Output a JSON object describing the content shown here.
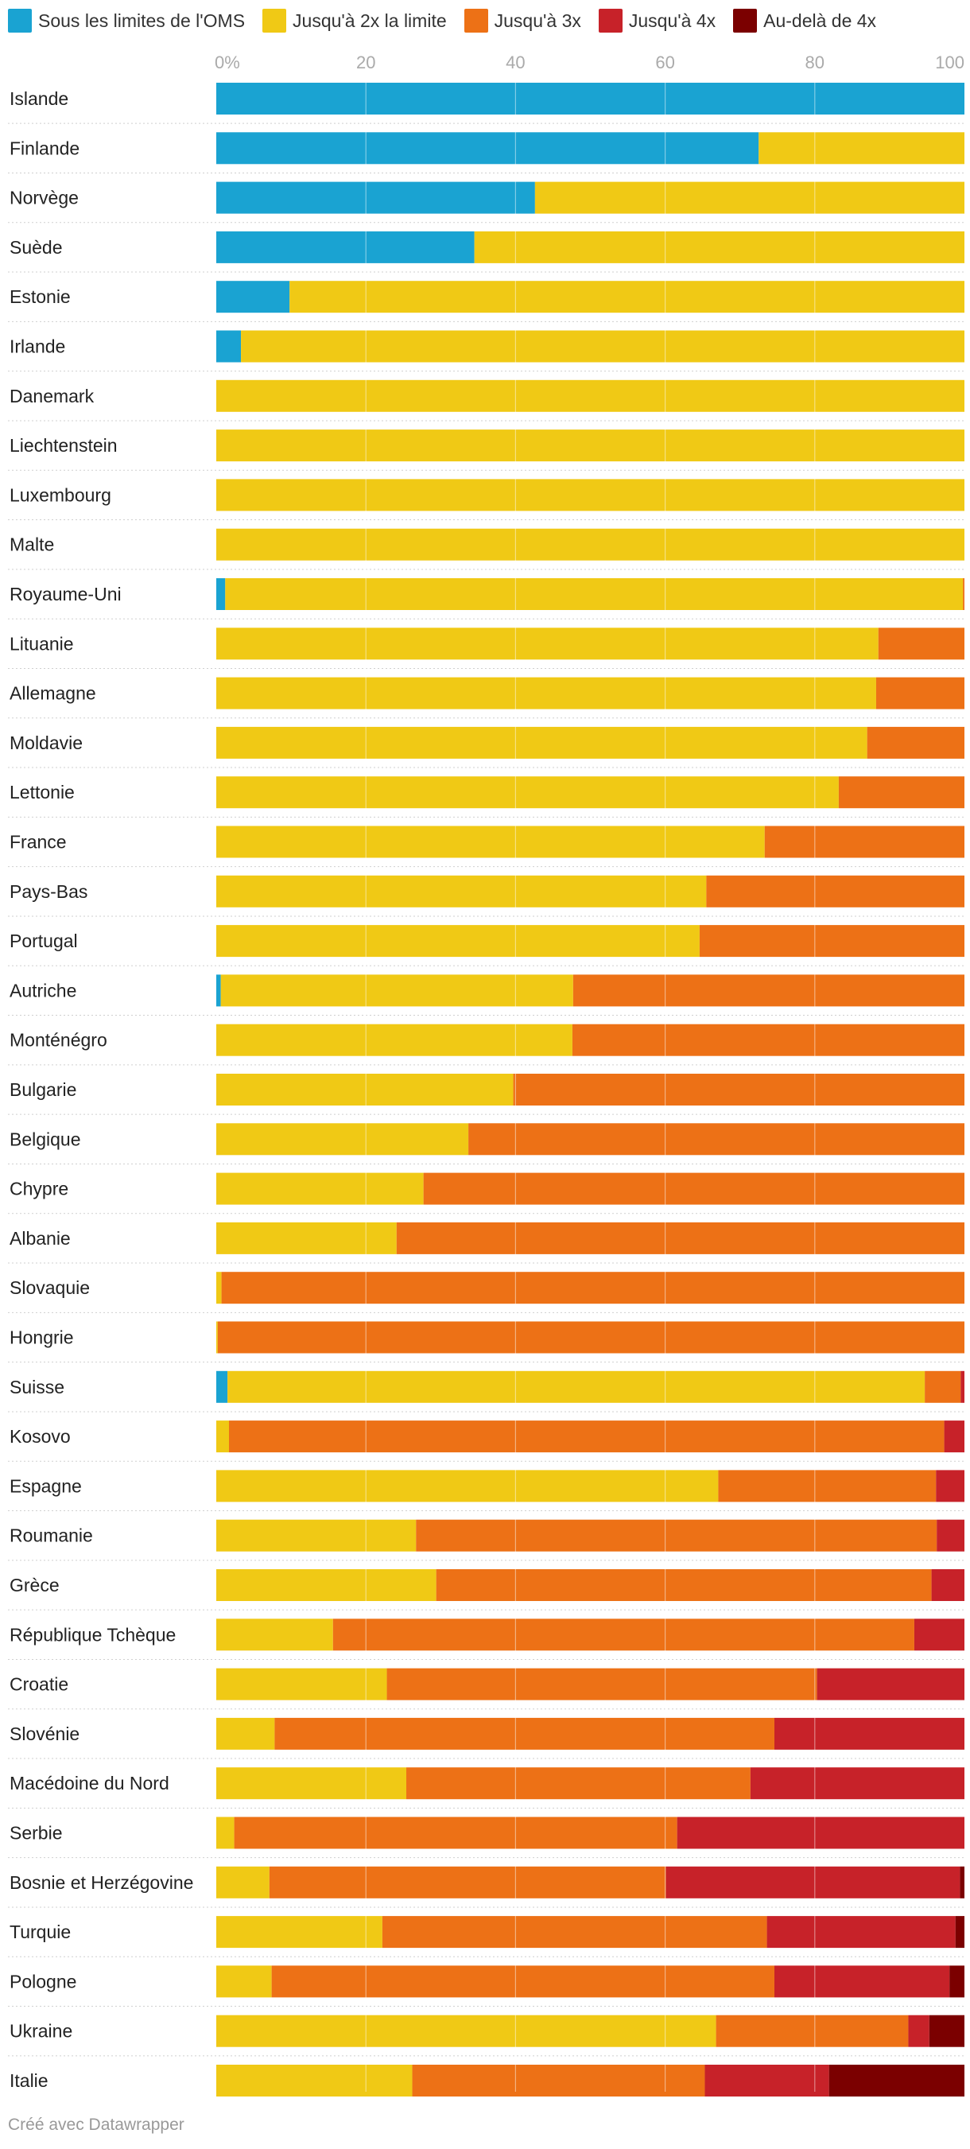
{
  "chart_data": {
    "type": "bar",
    "orientation": "horizontal",
    "stacked": true,
    "xlim": [
      0,
      100
    ],
    "ticks": [
      0,
      20,
      40,
      60,
      80,
      100
    ],
    "tick_labels": [
      "0%",
      "20",
      "40",
      "60",
      "80",
      "100"
    ],
    "legend_position": "top-left",
    "grid": true,
    "categories": [
      "Islande",
      "Finlande",
      "Norvège",
      "Suède",
      "Estonie",
      "Irlande",
      "Danemark",
      "Liechtenstein",
      "Luxembourg",
      "Malte",
      "Royaume-Uni",
      "Lituanie",
      "Allemagne",
      "Moldavie",
      "Lettonie",
      "France",
      "Pays-Bas",
      "Portugal",
      "Autriche",
      "Monténégro",
      "Bulgarie",
      "Belgique",
      "Chypre",
      "Albanie",
      "Slovaquie",
      "Hongrie",
      "Suisse",
      "Kosovo",
      "Espagne",
      "Roumanie",
      "Grèce",
      "République Tchèque",
      "Croatie",
      "Slovénie",
      "Macédoine du Nord",
      "Serbie",
      "Bosnie et Herzégovine",
      "Turquie",
      "Pologne",
      "Ukraine",
      "Italie"
    ],
    "series": [
      {
        "name": "Sous les limites de l'OMS",
        "color": "#1aa3d2",
        "values": [
          100,
          72.5,
          42.6,
          34.5,
          9.8,
          3.3,
          0,
          0,
          0,
          0,
          1.2,
          0,
          0,
          0,
          0,
          0,
          0,
          0,
          0.6,
          0,
          0,
          0,
          0,
          0,
          0,
          0,
          1.5,
          0,
          0,
          0,
          0,
          0,
          0,
          0,
          0,
          0,
          0,
          0,
          0,
          0,
          0
        ]
      },
      {
        "name": "Jusqu'à 2x la limite",
        "color": "#f0c915",
        "values": [
          0,
          27.5,
          57.4,
          65.5,
          90.2,
          96.7,
          100,
          100,
          100,
          100,
          98.6,
          88.5,
          88.2,
          87,
          83.2,
          73.3,
          65.5,
          64.6,
          47.1,
          47.6,
          39.7,
          33.7,
          27.7,
          24.1,
          0.7,
          0.2,
          93.2,
          1.7,
          67.1,
          26.7,
          29.4,
          15.6,
          22.8,
          7.8,
          25.4,
          2.4,
          7.1,
          22.2,
          7.4,
          66.8,
          26.2
        ]
      },
      {
        "name": "Jusqu'à 3x",
        "color": "#ed7116",
        "values": [
          0,
          0,
          0,
          0,
          0,
          0,
          0,
          0,
          0,
          0,
          0.2,
          11.5,
          11.8,
          13,
          16.8,
          26.7,
          34.5,
          35.4,
          52.3,
          52.4,
          60.3,
          66.3,
          72.3,
          75.9,
          99.3,
          99.8,
          4.8,
          95.6,
          29.1,
          69.6,
          66.2,
          77.7,
          57.5,
          66.8,
          46,
          59.2,
          53,
          51.4,
          67.2,
          25.7,
          39.1
        ]
      },
      {
        "name": "Jusqu'à 4x",
        "color": "#c72229",
        "values": [
          0,
          0,
          0,
          0,
          0,
          0,
          0,
          0,
          0,
          0,
          0,
          0,
          0,
          0,
          0,
          0,
          0,
          0,
          0,
          0,
          0,
          0,
          0,
          0,
          0,
          0,
          0.5,
          2.7,
          3.8,
          3.7,
          4.4,
          6.7,
          19.7,
          25.4,
          28.6,
          38.4,
          39.3,
          25.2,
          23.4,
          2.8,
          16.6
        ]
      },
      {
        "name": "Au-delà de 4x",
        "color": "#7b0000",
        "values": [
          0,
          0,
          0,
          0,
          0,
          0,
          0,
          0,
          0,
          0,
          0,
          0,
          0,
          0,
          0,
          0,
          0,
          0,
          0,
          0,
          0,
          0,
          0,
          0,
          0,
          0,
          0,
          0,
          0,
          0,
          0,
          0,
          0,
          0,
          0,
          0,
          0.6,
          1.2,
          2,
          4.7,
          18.1
        ]
      }
    ]
  },
  "footer": {
    "credit": "Créé avec Datawrapper"
  }
}
